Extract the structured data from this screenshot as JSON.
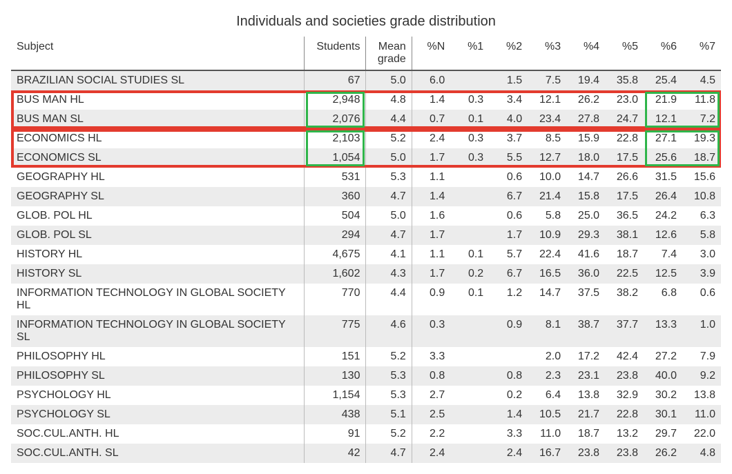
{
  "title": "Individuals and societies grade distribution",
  "columns": [
    "Subject",
    "Students",
    "Mean grade",
    "%N",
    "%1",
    "%2",
    "%3",
    "%4",
    "%5",
    "%6",
    "%7"
  ],
  "rows": [
    {
      "subject": "BRAZILIAN SOCIAL STUDIES SL",
      "students": "67",
      "mean": "5.0",
      "pN": "6.0",
      "p1": "",
      "p2": "1.5",
      "p3": "7.5",
      "p4": "19.4",
      "p5": "35.8",
      "p6": "25.4",
      "p7": "4.5",
      "stripe": true
    },
    {
      "subject": "BUS MAN HL",
      "students": "2,948",
      "mean": "4.8",
      "pN": "1.4",
      "p1": "0.3",
      "p2": "3.4",
      "p3": "12.1",
      "p4": "26.2",
      "p5": "23.0",
      "p6": "21.9",
      "p7": "11.8",
      "stripe": false
    },
    {
      "subject": "BUS MAN SL",
      "students": "2,076",
      "mean": "4.4",
      "pN": "0.7",
      "p1": "0.1",
      "p2": "4.0",
      "p3": "23.4",
      "p4": "27.8",
      "p5": "24.7",
      "p6": "12.1",
      "p7": "7.2",
      "stripe": true
    },
    {
      "subject": "ECONOMICS HL",
      "students": "2,103",
      "mean": "5.2",
      "pN": "2.4",
      "p1": "0.3",
      "p2": "3.7",
      "p3": "8.5",
      "p4": "15.9",
      "p5": "22.8",
      "p6": "27.1",
      "p7": "19.3",
      "stripe": false
    },
    {
      "subject": "ECONOMICS SL",
      "students": "1,054",
      "mean": "5.0",
      "pN": "1.7",
      "p1": "0.3",
      "p2": "5.5",
      "p3": "12.7",
      "p4": "18.0",
      "p5": "17.5",
      "p6": "25.6",
      "p7": "18.7",
      "stripe": true
    },
    {
      "subject": "GEOGRAPHY HL",
      "students": "531",
      "mean": "5.3",
      "pN": "1.1",
      "p1": "",
      "p2": "0.6",
      "p3": "10.0",
      "p4": "14.7",
      "p5": "26.6",
      "p6": "31.5",
      "p7": "15.6",
      "stripe": false
    },
    {
      "subject": "GEOGRAPHY SL",
      "students": "360",
      "mean": "4.7",
      "pN": "1.4",
      "p1": "",
      "p2": "6.7",
      "p3": "21.4",
      "p4": "15.8",
      "p5": "17.5",
      "p6": "26.4",
      "p7": "10.8",
      "stripe": true
    },
    {
      "subject": "GLOB. POL HL",
      "students": "504",
      "mean": "5.0",
      "pN": "1.6",
      "p1": "",
      "p2": "0.6",
      "p3": "5.8",
      "p4": "25.0",
      "p5": "36.5",
      "p6": "24.2",
      "p7": "6.3",
      "stripe": false
    },
    {
      "subject": "GLOB. POL SL",
      "students": "294",
      "mean": "4.7",
      "pN": "1.7",
      "p1": "",
      "p2": "1.7",
      "p3": "10.9",
      "p4": "29.3",
      "p5": "38.1",
      "p6": "12.6",
      "p7": "5.8",
      "stripe": true
    },
    {
      "subject": "HISTORY HL",
      "students": "4,675",
      "mean": "4.1",
      "pN": "1.1",
      "p1": "0.1",
      "p2": "5.7",
      "p3": "22.4",
      "p4": "41.6",
      "p5": "18.7",
      "p6": "7.4",
      "p7": "3.0",
      "stripe": false
    },
    {
      "subject": "HISTORY SL",
      "students": "1,602",
      "mean": "4.3",
      "pN": "1.7",
      "p1": "0.2",
      "p2": "6.7",
      "p3": "16.5",
      "p4": "36.0",
      "p5": "22.5",
      "p6": "12.5",
      "p7": "3.9",
      "stripe": true
    },
    {
      "subject": "INFORMATION TECHNOLOGY IN GLOBAL SOCIETY HL",
      "students": "770",
      "mean": "4.4",
      "pN": "0.9",
      "p1": "0.1",
      "p2": "1.2",
      "p3": "14.7",
      "p4": "37.5",
      "p5": "38.2",
      "p6": "6.8",
      "p7": "0.6",
      "stripe": false
    },
    {
      "subject": "INFORMATION TECHNOLOGY IN GLOBAL SOCIETY SL",
      "students": "775",
      "mean": "4.6",
      "pN": "0.3",
      "p1": "",
      "p2": "0.9",
      "p3": "8.1",
      "p4": "38.7",
      "p5": "37.7",
      "p6": "13.3",
      "p7": "1.0",
      "stripe": true
    },
    {
      "subject": "PHILOSOPHY HL",
      "students": "151",
      "mean": "5.2",
      "pN": "3.3",
      "p1": "",
      "p2": "",
      "p3": "2.0",
      "p4": "17.2",
      "p5": "42.4",
      "p6": "27.2",
      "p7": "7.9",
      "stripe": false
    },
    {
      "subject": "PHILOSOPHY SL",
      "students": "130",
      "mean": "5.3",
      "pN": "0.8",
      "p1": "",
      "p2": "0.8",
      "p3": "2.3",
      "p4": "23.1",
      "p5": "23.8",
      "p6": "40.0",
      "p7": "9.2",
      "stripe": true
    },
    {
      "subject": "PSYCHOLOGY HL",
      "students": "1,154",
      "mean": "5.3",
      "pN": "2.7",
      "p1": "",
      "p2": "0.2",
      "p3": "6.4",
      "p4": "13.8",
      "p5": "32.9",
      "p6": "30.2",
      "p7": "13.8",
      "stripe": false
    },
    {
      "subject": "PSYCHOLOGY SL",
      "students": "438",
      "mean": "5.1",
      "pN": "2.5",
      "p1": "",
      "p2": "1.4",
      "p3": "10.5",
      "p4": "21.7",
      "p5": "22.8",
      "p6": "30.1",
      "p7": "11.0",
      "stripe": true
    },
    {
      "subject": "SOC.CUL.ANTH. HL",
      "students": "91",
      "mean": "5.2",
      "pN": "2.2",
      "p1": "",
      "p2": "3.3",
      "p3": "11.0",
      "p4": "18.7",
      "p5": "13.2",
      "p6": "29.7",
      "p7": "22.0",
      "stripe": false
    },
    {
      "subject": "SOC.CUL.ANTH. SL",
      "students": "42",
      "mean": "4.7",
      "pN": "2.4",
      "p1": "",
      "p2": "2.4",
      "p3": "16.7",
      "p4": "23.8",
      "p5": "23.8",
      "p6": "26.2",
      "p7": "4.8",
      "stripe": true
    }
  ],
  "highlights": {
    "red_box_1": {
      "rows": [
        1,
        2
      ],
      "note": "BUS MAN HL/SL full row"
    },
    "red_box_2": {
      "rows": [
        3,
        4
      ],
      "note": "ECONOMICS HL/SL full row"
    },
    "green_students_1": {
      "rows": [
        1,
        2
      ],
      "col": "students"
    },
    "green_students_2": {
      "rows": [
        3,
        4
      ],
      "col": "students"
    },
    "green_p67_1": {
      "rows": [
        1,
        2
      ],
      "cols": [
        "p6",
        "p7"
      ]
    },
    "green_p67_2": {
      "rows": [
        3,
        4
      ],
      "cols": [
        "p6",
        "p7"
      ]
    }
  },
  "colors": {
    "red": "#e33b2e",
    "green": "#2fb54a",
    "stripe": "#ececec",
    "text": "#333333",
    "border_dark": "#555555",
    "border_light": "#bbbbbb"
  }
}
